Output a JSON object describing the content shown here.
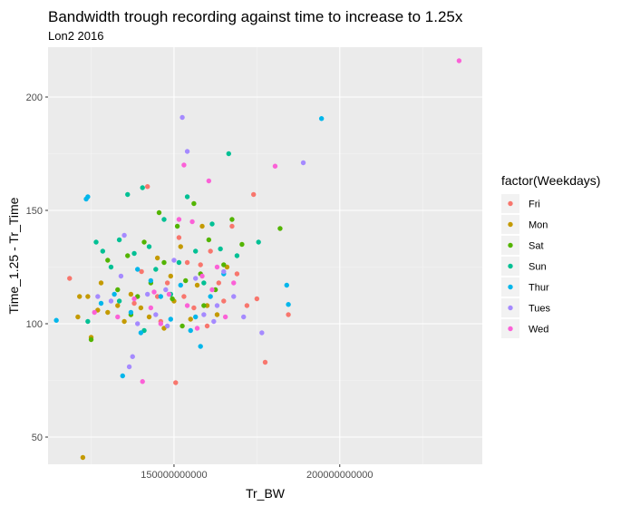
{
  "chart_data": {
    "type": "scatter",
    "title": "Bandwidth trough recording against time to increase to 1.25x",
    "subtitle": "Lon2 2016",
    "xlabel": "Tr_BW",
    "ylabel": "Time_1.25 - Tr_Time",
    "xlim": [
      112000000000,
      243000000000
    ],
    "ylim": [
      38000,
      222000
    ],
    "x_ticks": [
      150000000000,
      200000000000
    ],
    "x_tick_labels": [
      "150000000000",
      "200000000000"
    ],
    "y_ticks": [
      50000,
      100000,
      150000,
      200000
    ],
    "y_tick_labels": [
      "50",
      "100",
      "150",
      "200"
    ],
    "grid": true,
    "legend": {
      "title": "factor(Weekdays)",
      "placement": "right",
      "labels": [
        "Fri",
        "Mon",
        "Sat",
        "Sun",
        "Thur",
        "Tues",
        "Wed"
      ]
    },
    "series": [
      {
        "name": "Fri",
        "color": "#F8766D",
        "points": [
          [
            118500000000,
            120000
          ],
          [
            140200000000,
            123000
          ],
          [
            142000000000,
            160500
          ],
          [
            145000000000,
            112000
          ],
          [
            148000000000,
            118000
          ],
          [
            150500000000,
            74000
          ],
          [
            151500000000,
            138000
          ],
          [
            153000000000,
            112000
          ],
          [
            156000000000,
            107000
          ],
          [
            158000000000,
            126000
          ],
          [
            161000000000,
            132000
          ],
          [
            163500000000,
            118000
          ],
          [
            165000000000,
            110000
          ],
          [
            167500000000,
            143000
          ],
          [
            169000000000,
            122000
          ],
          [
            172000000000,
            108000
          ],
          [
            174000000000,
            157000
          ],
          [
            175000000000,
            111000
          ],
          [
            177500000000,
            83000
          ],
          [
            184500000000,
            104000
          ],
          [
            138000000000,
            109000
          ],
          [
            146000000000,
            101000
          ],
          [
            154000000000,
            127000
          ],
          [
            160000000000,
            99000
          ]
        ]
      },
      {
        "name": "Mon",
        "color": "#C49A00",
        "points": [
          [
            121000000000,
            103000
          ],
          [
            122500000000,
            41000
          ],
          [
            124000000000,
            112000
          ],
          [
            125000000000,
            94000
          ],
          [
            128000000000,
            118000
          ],
          [
            130000000000,
            105000
          ],
          [
            133000000000,
            108000
          ],
          [
            135000000000,
            101000
          ],
          [
            137000000000,
            113000
          ],
          [
            140000000000,
            107000
          ],
          [
            142500000000,
            103000
          ],
          [
            145000000000,
            129000
          ],
          [
            147000000000,
            98000
          ],
          [
            150000000000,
            110000
          ],
          [
            152000000000,
            134000
          ],
          [
            155000000000,
            102000
          ],
          [
            157000000000,
            117000
          ],
          [
            160000000000,
            108000
          ],
          [
            163000000000,
            104000
          ],
          [
            166000000000,
            125000
          ],
          [
            121500000000,
            112000
          ],
          [
            127000000000,
            106000
          ],
          [
            149000000000,
            121000
          ],
          [
            158500000000,
            143000
          ]
        ]
      },
      {
        "name": "Sat",
        "color": "#53B400",
        "points": [
          [
            125000000000,
            93000
          ],
          [
            130000000000,
            128000
          ],
          [
            133000000000,
            115000
          ],
          [
            136000000000,
            130000
          ],
          [
            139000000000,
            112000
          ],
          [
            141000000000,
            136000
          ],
          [
            143000000000,
            118000
          ],
          [
            145500000000,
            149000
          ],
          [
            147000000000,
            127000
          ],
          [
            149500000000,
            111000
          ],
          [
            151000000000,
            143000
          ],
          [
            153500000000,
            119000
          ],
          [
            156000000000,
            153000
          ],
          [
            158000000000,
            122000
          ],
          [
            160500000000,
            137000
          ],
          [
            162500000000,
            115000
          ],
          [
            165000000000,
            126000
          ],
          [
            167500000000,
            146000
          ],
          [
            170500000000,
            135000
          ],
          [
            182000000000,
            142000
          ],
          [
            137000000000,
            104000
          ],
          [
            152500000000,
            99000
          ],
          [
            159000000000,
            108000
          ]
        ]
      },
      {
        "name": "Sun",
        "color": "#00C094",
        "points": [
          [
            124000000000,
            101000
          ],
          [
            126500000000,
            136000
          ],
          [
            128500000000,
            132000
          ],
          [
            131000000000,
            125000
          ],
          [
            133500000000,
            137000
          ],
          [
            136000000000,
            157000
          ],
          [
            138000000000,
            131000
          ],
          [
            140500000000,
            160000
          ],
          [
            142500000000,
            134000
          ],
          [
            144500000000,
            124000
          ],
          [
            147000000000,
            146000
          ],
          [
            149000000000,
            113000
          ],
          [
            151500000000,
            127000
          ],
          [
            154000000000,
            156000
          ],
          [
            156500000000,
            132000
          ],
          [
            159000000000,
            118000
          ],
          [
            161500000000,
            144000
          ],
          [
            164000000000,
            133000
          ],
          [
            166500000000,
            175000
          ],
          [
            169000000000,
            130000
          ],
          [
            175500000000,
            136000
          ],
          [
            133500000000,
            110000
          ],
          [
            141000000000,
            97000
          ]
        ]
      },
      {
        "name": "Thur",
        "color": "#00B6EB",
        "points": [
          [
            114500000000,
            101500
          ],
          [
            123500000000,
            155000
          ],
          [
            124000000000,
            156000
          ],
          [
            128000000000,
            109000
          ],
          [
            132000000000,
            113000
          ],
          [
            134500000000,
            77000
          ],
          [
            137000000000,
            105000
          ],
          [
            140000000000,
            96000
          ],
          [
            143000000000,
            119000
          ],
          [
            146000000000,
            112000
          ],
          [
            149000000000,
            102000
          ],
          [
            152000000000,
            117000
          ],
          [
            155000000000,
            97000
          ],
          [
            158000000000,
            90000
          ],
          [
            161000000000,
            112000
          ],
          [
            165000000000,
            122000
          ],
          [
            184000000000,
            117000
          ],
          [
            184500000000,
            108500
          ],
          [
            194500000000,
            190500
          ],
          [
            139000000000,
            124000
          ],
          [
            156500000000,
            103000
          ]
        ]
      },
      {
        "name": "Tues",
        "color": "#A58AFF",
        "points": [
          [
            127000000000,
            112000
          ],
          [
            131000000000,
            110000
          ],
          [
            134000000000,
            121000
          ],
          [
            136500000000,
            81000
          ],
          [
            137500000000,
            85500
          ],
          [
            139000000000,
            100000
          ],
          [
            142000000000,
            113000
          ],
          [
            144500000000,
            104000
          ],
          [
            147500000000,
            115000
          ],
          [
            150000000000,
            128000
          ],
          [
            152500000000,
            191000
          ],
          [
            154000000000,
            176000
          ],
          [
            156500000000,
            120000
          ],
          [
            159000000000,
            104000
          ],
          [
            162000000000,
            101000
          ],
          [
            165000000000,
            123000
          ],
          [
            168000000000,
            112000
          ],
          [
            171000000000,
            103000
          ],
          [
            176500000000,
            96000
          ],
          [
            189000000000,
            171000
          ],
          [
            135000000000,
            139000
          ],
          [
            148000000000,
            99000
          ],
          [
            163000000000,
            108000
          ]
        ]
      },
      {
        "name": "Wed",
        "color": "#FB61D7",
        "points": [
          [
            126000000000,
            105000
          ],
          [
            133000000000,
            103000
          ],
          [
            138000000000,
            111000
          ],
          [
            140500000000,
            74500
          ],
          [
            143000000000,
            107000
          ],
          [
            146000000000,
            100000
          ],
          [
            148500000000,
            113000
          ],
          [
            151500000000,
            146000
          ],
          [
            153000000000,
            170000
          ],
          [
            155500000000,
            145000
          ],
          [
            158500000000,
            121000
          ],
          [
            160500000000,
            163000
          ],
          [
            163000000000,
            125000
          ],
          [
            165500000000,
            103000
          ],
          [
            168000000000,
            118000
          ],
          [
            180500000000,
            169500
          ],
          [
            236000000000,
            216000
          ],
          [
            144000000000,
            114000
          ],
          [
            157000000000,
            98000
          ],
          [
            161500000000,
            115000
          ],
          [
            154000000000,
            108000
          ]
        ]
      }
    ]
  }
}
